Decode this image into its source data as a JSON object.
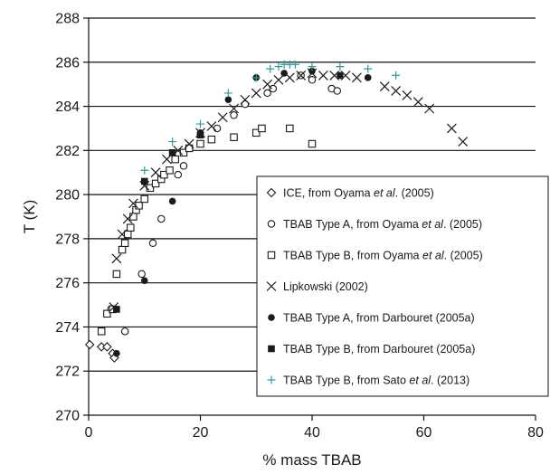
{
  "chart_data": {
    "type": "scatter",
    "title": "",
    "xlabel": "% mass TBAB",
    "ylabel": "T (K)",
    "xlim": [
      0,
      80
    ],
    "ylim": [
      270,
      288
    ],
    "xticks": [
      0,
      20,
      40,
      60,
      80
    ],
    "yticks": [
      270,
      272,
      274,
      276,
      278,
      280,
      282,
      284,
      286,
      288
    ],
    "grid": "horizontal",
    "legend_position": "bottom-right",
    "series": [
      {
        "name_parts": [
          "ICE, from Oyama ",
          "et al",
          ". (2005)"
        ],
        "marker": "diamond-open",
        "color": "#1a1a1a",
        "points": [
          [
            0.2,
            273.2
          ],
          [
            2.3,
            273.1
          ],
          [
            3.3,
            273.1
          ],
          [
            4.3,
            272.8
          ],
          [
            4.6,
            272.6
          ]
        ]
      },
      {
        "name_parts": [
          "TBAB Type A, from Oyama ",
          "et al",
          ". (2005)"
        ],
        "marker": "circle-open",
        "color": "#1a1a1a",
        "points": [
          [
            4,
            274.8
          ],
          [
            6.5,
            273.8
          ],
          [
            9.5,
            276.4
          ],
          [
            11.5,
            277.8
          ],
          [
            13,
            278.9
          ],
          [
            16,
            280.9
          ],
          [
            17,
            281.3
          ],
          [
            23,
            283
          ],
          [
            26,
            283.6
          ],
          [
            28,
            284.1
          ],
          [
            32,
            284.6
          ],
          [
            33,
            284.8
          ],
          [
            38,
            285.4
          ],
          [
            40,
            285.2
          ],
          [
            43.5,
            284.8
          ],
          [
            44.5,
            284.7
          ]
        ]
      },
      {
        "name_parts": [
          "TBAB Type B, from Oyama ",
          "et al",
          ". (2005)"
        ],
        "marker": "square-open",
        "color": "#1a1a1a",
        "points": [
          [
            2.3,
            273.8
          ],
          [
            3.3,
            274.6
          ],
          [
            4.3,
            274.8
          ],
          [
            5,
            276.4
          ],
          [
            6,
            277.5
          ],
          [
            6.5,
            277.8
          ],
          [
            7,
            278.2
          ],
          [
            7.5,
            278.5
          ],
          [
            8,
            279
          ],
          [
            8.5,
            279.3
          ],
          [
            9,
            279.5
          ],
          [
            10,
            279.8
          ],
          [
            11,
            280.3
          ],
          [
            12,
            280.5
          ],
          [
            13,
            280.7
          ],
          [
            13.5,
            280.9
          ],
          [
            14.5,
            281.1
          ],
          [
            15.5,
            281.6
          ],
          [
            17,
            281.9
          ],
          [
            18,
            282.1
          ],
          [
            20,
            282.3
          ],
          [
            22,
            282.5
          ],
          [
            26,
            282.6
          ],
          [
            30,
            282.8
          ],
          [
            31,
            283
          ],
          [
            36,
            283
          ],
          [
            40,
            282.3
          ]
        ]
      },
      {
        "name": "Lipkowski (2002)",
        "marker": "cross",
        "color": "#1a1a1a",
        "points": [
          [
            4.5,
            274.9
          ],
          [
            5,
            277.1
          ],
          [
            6,
            278.2
          ],
          [
            7,
            278.9
          ],
          [
            8,
            279.6
          ],
          [
            10,
            280.4
          ],
          [
            12,
            281
          ],
          [
            14,
            281.6
          ],
          [
            16,
            282
          ],
          [
            18,
            282.3
          ],
          [
            20,
            282.8
          ],
          [
            22,
            283.1
          ],
          [
            24,
            283.5
          ],
          [
            26,
            283.9
          ],
          [
            28,
            284.3
          ],
          [
            30,
            284.6
          ],
          [
            32,
            285
          ],
          [
            34,
            285.2
          ],
          [
            36,
            285.3
          ],
          [
            38,
            285.4
          ],
          [
            40,
            285.5
          ],
          [
            42,
            285.4
          ],
          [
            44,
            285.4
          ],
          [
            46,
            285.4
          ],
          [
            48,
            285.3
          ],
          [
            53,
            284.9
          ],
          [
            55,
            284.7
          ],
          [
            57,
            284.5
          ],
          [
            59,
            284.2
          ],
          [
            61,
            283.9
          ],
          [
            65,
            283
          ],
          [
            67,
            282.4
          ]
        ]
      },
      {
        "name": "TBAB Type A, from Darbouret (2005a)",
        "marker": "circle-filled",
        "color": "#1a1a1a",
        "points": [
          [
            5,
            272.8
          ],
          [
            10,
            276.1
          ],
          [
            15,
            279.7
          ],
          [
            20,
            282.8
          ],
          [
            25,
            284.3
          ],
          [
            30,
            285.3
          ],
          [
            35,
            285.5
          ],
          [
            40,
            285.6
          ],
          [
            45,
            285.4
          ],
          [
            50,
            285.3
          ]
        ]
      },
      {
        "name": "TBAB Type B, from Darbouret (2005a)",
        "marker": "square-filled",
        "color": "#1a1a1a",
        "points": [
          [
            5,
            274.8
          ],
          [
            10,
            280.6
          ],
          [
            15,
            281.9
          ],
          [
            20,
            282.7
          ]
        ]
      },
      {
        "name_parts": [
          "TBAB Type B, from Sato ",
          "et al",
          ". (2013)"
        ],
        "marker": "plus",
        "color": "#2a9d9d",
        "points": [
          [
            10,
            281.1
          ],
          [
            15,
            282.4
          ],
          [
            20,
            283.2
          ],
          [
            25,
            284.6
          ],
          [
            30,
            285.3
          ],
          [
            32.5,
            285.7
          ],
          [
            34,
            285.8
          ],
          [
            35,
            285.9
          ],
          [
            36,
            285.9
          ],
          [
            37,
            285.9
          ],
          [
            40,
            285.8
          ],
          [
            45,
            285.8
          ],
          [
            50,
            285.7
          ],
          [
            55,
            285.4
          ]
        ]
      }
    ]
  }
}
